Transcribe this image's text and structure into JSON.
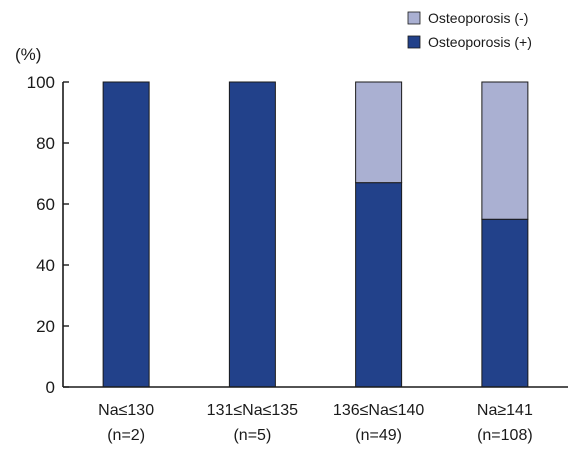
{
  "chart_data": {
    "type": "bar",
    "stacked": true,
    "ylabel": "(%)",
    "ylim": [
      0,
      100
    ],
    "yticks": [
      0,
      20,
      40,
      60,
      80,
      100
    ],
    "grid": false,
    "legend_position": "top-right",
    "categories": [
      {
        "line1": "Na≤130",
        "line2": "(n=2)"
      },
      {
        "line1": "131≤Na≤135",
        "line2": "(n=5)"
      },
      {
        "line1": "136≤Na≤140",
        "line2": "(n=49)"
      },
      {
        "line1": "Na≥141",
        "line2": "(n=108)"
      }
    ],
    "series": [
      {
        "name": "Osteoporosis (+)",
        "color": "#22418a",
        "values": [
          100,
          100,
          67,
          55
        ]
      },
      {
        "name": "Osteoporosis (-)",
        "color": "#aab0d2",
        "values": [
          0,
          0,
          33,
          45
        ]
      }
    ],
    "legend_order": [
      1,
      0
    ]
  }
}
